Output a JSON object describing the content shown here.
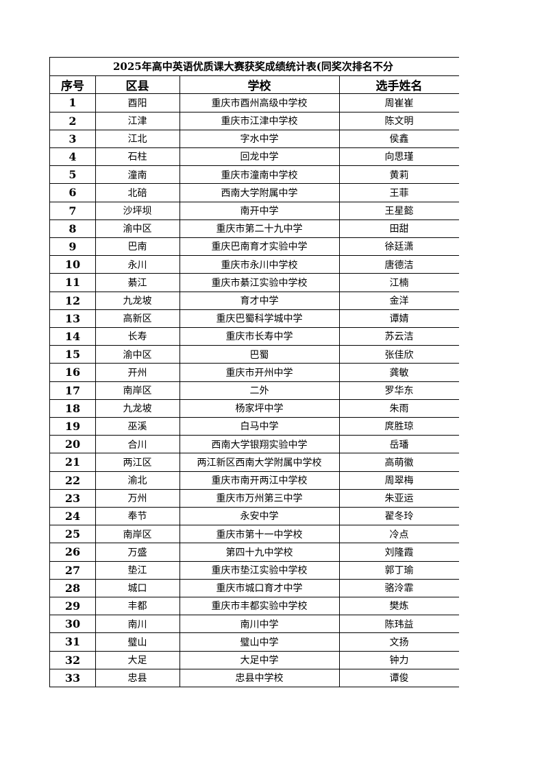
{
  "title": "2025年高中英语优质课大赛获奖成绩统计表(同奖次排名不分",
  "header": [
    "序号",
    "区县",
    "学校",
    "选手姓名"
  ],
  "rows": [
    [
      1,
      "酉阳",
      "重庆市酉州高级中学校",
      "周崔崔"
    ],
    [
      2,
      "江津",
      "重庆市江津中学校",
      "陈文明"
    ],
    [
      3,
      "江北",
      "字水中学",
      "侯鑫"
    ],
    [
      4,
      "石柱",
      "回龙中学",
      "向思瑾"
    ],
    [
      5,
      "潼南",
      "重庆市潼南中学校",
      "黄莉"
    ],
    [
      6,
      "北碚",
      "西南大学附属中学",
      "王菲"
    ],
    [
      7,
      "沙坪坝",
      "南开中学",
      "王星懿"
    ],
    [
      8,
      "渝中区",
      "重庆市第二十九中学",
      "田甜"
    ],
    [
      9,
      "巴南",
      "重庆巴南育才实验中学",
      "徐廷潇"
    ],
    [
      10,
      "永川",
      "重庆市永川中学校",
      "唐德洁"
    ],
    [
      11,
      "綦江",
      "重庆市綦江实验中学校",
      "江楠"
    ],
    [
      12,
      "九龙坡",
      "育才中学",
      "金洋"
    ],
    [
      13,
      "高新区",
      "重庆巴蜀科学城中学",
      "谭婧"
    ],
    [
      14,
      "长寿",
      "重庆市长寿中学",
      "苏云洁"
    ],
    [
      15,
      "渝中区",
      "巴蜀",
      "张佳欣"
    ],
    [
      16,
      "开州",
      "重庆市开州中学",
      "龚敏"
    ],
    [
      17,
      "南岸区",
      "二外",
      "罗华东"
    ],
    [
      18,
      "九龙坡",
      "杨家坪中学",
      "朱雨"
    ],
    [
      19,
      "巫溪",
      "白马中学",
      "庹胜琼"
    ],
    [
      20,
      "合川",
      "西南大学银翔实验中学",
      "岳璠"
    ],
    [
      21,
      "两江区",
      "两江新区西南大学附属中学校",
      "高萌徽"
    ],
    [
      22,
      "渝北",
      "重庆市南开两江中学校",
      "周翠梅"
    ],
    [
      23,
      "万州",
      "重庆市万州第三中学",
      "朱亚运"
    ],
    [
      24,
      "奉节",
      "永安中学",
      "翟冬玲"
    ],
    [
      25,
      "南岸区",
      "重庆市第十一中学校",
      "冷点"
    ],
    [
      26,
      "万盛",
      "第四十九中学校",
      "刘隆霞"
    ],
    [
      27,
      "垫江",
      "重庆市垫江实验中学校",
      "郭丁瑜"
    ],
    [
      28,
      "城口",
      "重庆市城口育才中学",
      "骆泠霏"
    ],
    [
      29,
      "丰都",
      "重庆市丰都实验中学校",
      "樊炼"
    ],
    [
      30,
      "南川",
      "南川中学",
      "陈玮益"
    ],
    [
      31,
      "璧山",
      "璧山中学",
      "文扬"
    ],
    [
      32,
      "大足",
      "大足中学",
      "钟力"
    ],
    [
      33,
      "忠县",
      "忠县中学校",
      "谭俊"
    ]
  ]
}
